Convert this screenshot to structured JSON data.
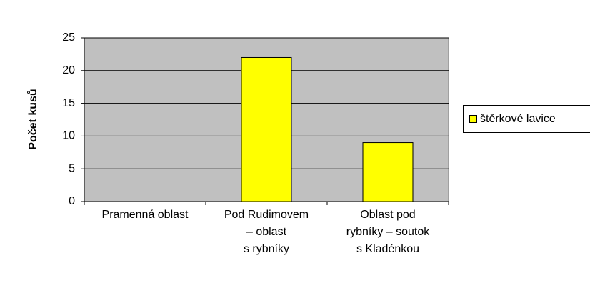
{
  "chart_data": {
    "type": "bar",
    "y_label": "Počet kusů",
    "categories": [
      [
        "Pramenná oblast"
      ],
      [
        "Pod Rudimovem",
        "– oblast",
        "s rybníky"
      ],
      [
        "Oblast pod",
        "rybníky – soutok",
        "s Kladénkou"
      ]
    ],
    "series": [
      {
        "name": "štěrkové lavice",
        "color": "#ffff00",
        "values": [
          0,
          22,
          9
        ]
      }
    ],
    "ylim": [
      0,
      25
    ],
    "yticks": [
      0,
      5,
      10,
      15,
      20,
      25
    ],
    "grid": true,
    "legend": "right"
  }
}
